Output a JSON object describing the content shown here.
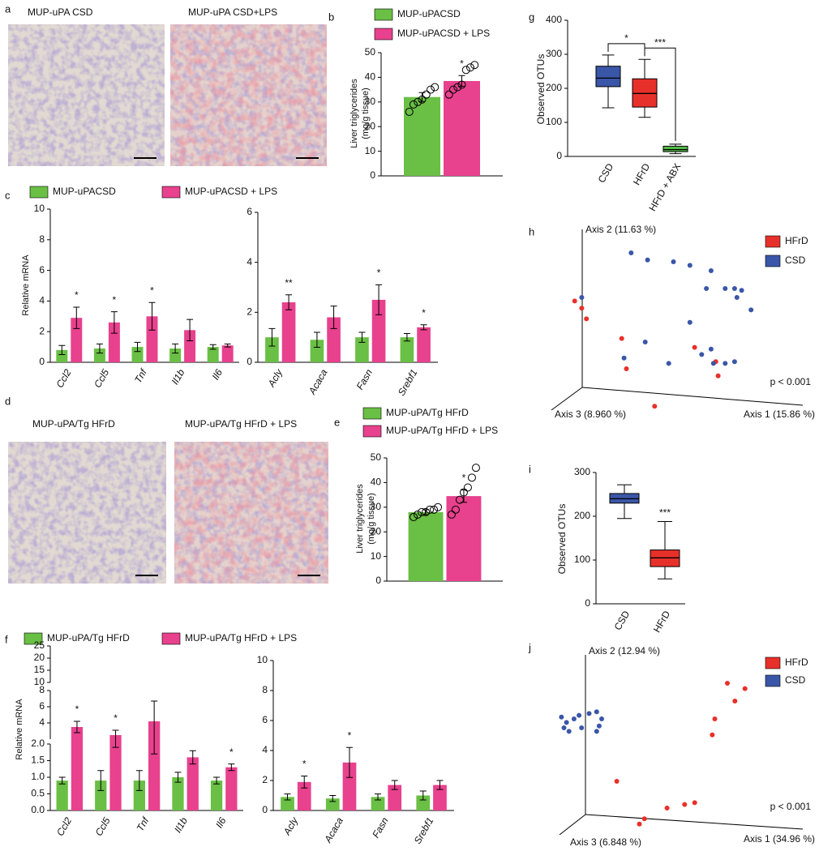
{
  "chart_data": [
    {
      "type": "image",
      "panel": "a",
      "captions": [
        "MUP-uPA CSD",
        "MUP-uPA CSD+LPS"
      ]
    },
    {
      "type": "bar",
      "panel": "b",
      "y_label": [
        "Liver triglycerides",
        "(mg/g tissue)"
      ],
      "series": [
        {
          "name": "MUP-uPACSD",
          "color": "#6abf45"
        },
        {
          "name": "MUP-uPACSD + LPS",
          "color": "#e8418d"
        }
      ],
      "subplots": [
        {
          "ylim": [
            0,
            50
          ],
          "yticks": [
            0,
            10,
            20,
            30,
            40,
            50
          ],
          "series": [
            {
              "values": [
                32
              ],
              "errors": [
                1.8
              ],
              "points": [
                [
                  26,
                  29,
                  30,
                  31,
                  33,
                  35,
                  36
                ]
              ]
            },
            {
              "values": [
                38.5
              ],
              "errors": [
                2.2
              ],
              "significance": [
                "*"
              ],
              "points": [
                [
                  33,
                  35,
                  36,
                  37,
                  43,
                  44,
                  45
                ]
              ]
            }
          ]
        }
      ]
    },
    {
      "type": "bar",
      "panel": "c",
      "y_label": "Relative mRNA",
      "series": [
        {
          "name": "MUP-uPACSD",
          "color": "#6abf45"
        },
        {
          "name": "MUP-uPACSD + LPS",
          "color": "#e8418d"
        }
      ],
      "subplots": [
        {
          "categories": [
            "Ccl2",
            "Ccl5",
            "Tnf",
            "Il1b",
            "Il6"
          ],
          "ylim": [
            0,
            10
          ],
          "yticks": [
            0,
            2,
            4,
            6,
            8,
            10
          ],
          "series": [
            {
              "values": [
                0.8,
                0.9,
                1.0,
                0.9,
                1.0
              ],
              "errors": [
                0.3,
                0.3,
                0.3,
                0.3,
                0.15
              ]
            },
            {
              "values": [
                2.9,
                2.6,
                3.0,
                2.1,
                1.1
              ],
              "errors": [
                0.7,
                0.7,
                0.9,
                0.7,
                0.1
              ],
              "significance": [
                "*",
                "*",
                "*",
                null,
                null
              ]
            }
          ]
        },
        {
          "categories": [
            "Acly",
            "Acaca",
            "Fasn",
            "Srebf1"
          ],
          "ylim": [
            0,
            6
          ],
          "yticks": [
            0,
            2,
            4,
            6
          ],
          "series": [
            {
              "values": [
                1.0,
                0.9,
                1.0,
                1.0
              ],
              "errors": [
                0.35,
                0.3,
                0.2,
                0.15
              ]
            },
            {
              "values": [
                2.4,
                1.8,
                2.5,
                1.4
              ],
              "errors": [
                0.3,
                0.45,
                0.6,
                0.1
              ],
              "significance": [
                "**",
                null,
                "*",
                "*"
              ]
            }
          ]
        }
      ]
    },
    {
      "type": "image",
      "panel": "d",
      "captions": [
        "MUP-uPA/Tg HFrD",
        "MUP-uPA/Tg HFrD + LPS"
      ]
    },
    {
      "type": "bar",
      "panel": "e",
      "y_label": [
        "Liver triglycerides",
        "(mg/g tissue)"
      ],
      "series": [
        {
          "name": "MUP-uPA/Tg HFrD",
          "color": "#6abf45"
        },
        {
          "name": "MUP-uPA/Tg HFrD + LPS",
          "color": "#e8418d"
        }
      ],
      "subplots": [
        {
          "ylim": [
            0,
            50
          ],
          "yticks": [
            0,
            10,
            20,
            30,
            40,
            50
          ],
          "series": [
            {
              "values": [
                28
              ],
              "errors": [
                1
              ],
              "points": [
                [
                  26,
                  27,
                  28,
                  28,
                  29,
                  29,
                  30
                ]
              ]
            },
            {
              "values": [
                34.5
              ],
              "errors": [
                2.5
              ],
              "significance": [
                "*"
              ],
              "points": [
                [
                  27,
                  29,
                  33,
                  36,
                  38,
                  42,
                  46
                ]
              ]
            }
          ]
        }
      ]
    },
    {
      "type": "bar",
      "panel": "f",
      "y_label": "Relative mRNA",
      "series": [
        {
          "name": "MUP-uPA/Tg HFrD",
          "color": "#6abf45"
        },
        {
          "name": "MUP-uPA/Tg HFrD + LPS",
          "color": "#e8418d"
        }
      ],
      "subplots": [
        {
          "categories": [
            "Ccl2",
            "Ccl5",
            "Tnf",
            "Il1b",
            "Il6"
          ],
          "ylim_segments": [
            [
              0,
              2
            ],
            [
              2,
              8
            ],
            [
              10,
              25
            ]
          ],
          "yticks": [
            {
              "value": 0,
              "label": "0.0"
            },
            {
              "value": 0.5,
              "label": "0.5"
            },
            {
              "value": 1,
              "label": "1.0"
            },
            {
              "value": 1.5,
              "label": "1.5"
            },
            {
              "value": 2,
              "label": "2.0"
            },
            4,
            6,
            8,
            10,
            15,
            20,
            25
          ],
          "series": [
            {
              "values": [
                0.9,
                0.9,
                0.9,
                1.0,
                0.9
              ],
              "errors": [
                0.1,
                0.3,
                0.3,
                0.15,
                0.1
              ]
            },
            {
              "values": [
                3.5,
                2.5,
                4.2,
                1.6,
                1.3
              ],
              "errors": [
                0.7,
                0.6,
                2.5,
                0.2,
                0.1
              ],
              "significance": [
                "*",
                "*",
                null,
                null,
                "*"
              ]
            }
          ]
        },
        {
          "categories": [
            "Acly",
            "Acaca",
            "Fasn",
            "Srebf1"
          ],
          "ylim": [
            0,
            10
          ],
          "yticks": [
            0,
            2,
            4,
            6,
            8,
            10
          ],
          "series": [
            {
              "values": [
                0.9,
                0.8,
                0.9,
                1.0
              ],
              "errors": [
                0.2,
                0.2,
                0.2,
                0.3
              ]
            },
            {
              "values": [
                1.9,
                3.2,
                1.7,
                1.7
              ],
              "errors": [
                0.4,
                1.0,
                0.3,
                0.3
              ],
              "significance": [
                "*",
                "*",
                null,
                null
              ]
            }
          ]
        }
      ]
    },
    {
      "type": "box",
      "panel": "g",
      "y_label": "Observed OTUs",
      "ylim": [
        0,
        400
      ],
      "yticks": [
        0,
        100,
        200,
        300,
        400
      ],
      "series": [
        {
          "name": "CSD",
          "color": "#3a56a8",
          "min": 143,
          "q1": 205,
          "median": 230,
          "q3": 265,
          "max": 298
        },
        {
          "name": "HFrD",
          "color": "#e8302a",
          "min": 115,
          "q1": 145,
          "median": 185,
          "q3": 228,
          "max": 285
        },
        {
          "name": "HFrD + ABX",
          "color": "#52b848",
          "min": 8,
          "q1": 14,
          "median": 20,
          "q3": 30,
          "max": 36
        }
      ],
      "annotations": [
        "*",
        "***"
      ]
    },
    {
      "type": "scatter",
      "panel": "h",
      "x_label": "Axis 1 (15.86 %)",
      "y_label": "Axis 2 (11.63 %)",
      "z_label": "Axis 3 (8.960 %)",
      "annotation": "p < 0.001",
      "xlim": [
        0,
        1
      ],
      "ylim": [
        0,
        1
      ],
      "series": [
        {
          "name": "HFrD",
          "color": "#e8302a",
          "x": [
            0.03,
            0.06,
            0.08,
            0.23,
            0.25,
            0.37,
            0.54,
            0.63,
            0.64
          ],
          "y": [
            0.63,
            0.59,
            0.53,
            0.42,
            0.25,
            0.04,
            0.37,
            0.29,
            0.21
          ]
        },
        {
          "name": "CSD",
          "color": "#3a56a8",
          "x": [
            0.06,
            0.27,
            0.34,
            0.45,
            0.52,
            0.61,
            0.59,
            0.67,
            0.71,
            0.74,
            0.78,
            0.72,
            0.52,
            0.33,
            0.43,
            0.57,
            0.61,
            0.62,
            0.67,
            0.71,
            0.24
          ],
          "y": [
            0.65,
            0.9,
            0.86,
            0.85,
            0.83,
            0.8,
            0.7,
            0.7,
            0.7,
            0.69,
            0.58,
            0.65,
            0.51,
            0.4,
            0.28,
            0.33,
            0.36,
            0.28,
            0.28,
            0.29,
            0.31
          ]
        }
      ]
    },
    {
      "type": "box",
      "panel": "i",
      "y_label": "Observed OTUs",
      "ylim": [
        0,
        300
      ],
      "yticks": [
        0,
        100,
        200,
        300
      ],
      "series": [
        {
          "name": "CSD",
          "color": "#3a56a8",
          "min": 195,
          "q1": 230,
          "median": 240,
          "q3": 252,
          "max": 272
        },
        {
          "name": "HFrD",
          "color": "#e8302a",
          "min": 57,
          "q1": 85,
          "median": 105,
          "q3": 123,
          "max": 188,
          "significance": "***"
        }
      ]
    },
    {
      "type": "scatter",
      "panel": "j",
      "x_label": "Axis 1 (34.96 %)",
      "y_label": "Axis 2 (12.94 %)",
      "z_label": "Axis 3 (6.848 %)",
      "annotation": "p < 0.001",
      "xlim": [
        0,
        1
      ],
      "ylim": [
        0,
        1
      ],
      "series": [
        {
          "name": "HFrD",
          "color": "#e8302a",
          "x": [
            0.7,
            0.77,
            0.73,
            0.65,
            0.64,
            0.26,
            0.46,
            0.53,
            0.57,
            0.37,
            0.35
          ],
          "y": [
            0.85,
            0.82,
            0.75,
            0.65,
            0.56,
            0.3,
            0.15,
            0.17,
            0.18,
            0.09,
            0.06
          ]
        },
        {
          "name": "CSD",
          "color": "#3a56a8",
          "x": [
            0.04,
            0.06,
            0.09,
            0.11,
            0.15,
            0.18,
            0.2,
            0.05,
            0.07,
            0.12,
            0.18,
            0.19
          ],
          "y": [
            0.66,
            0.63,
            0.65,
            0.67,
            0.68,
            0.69,
            0.65,
            0.6,
            0.58,
            0.6,
            0.58,
            0.61
          ]
        }
      ]
    }
  ]
}
